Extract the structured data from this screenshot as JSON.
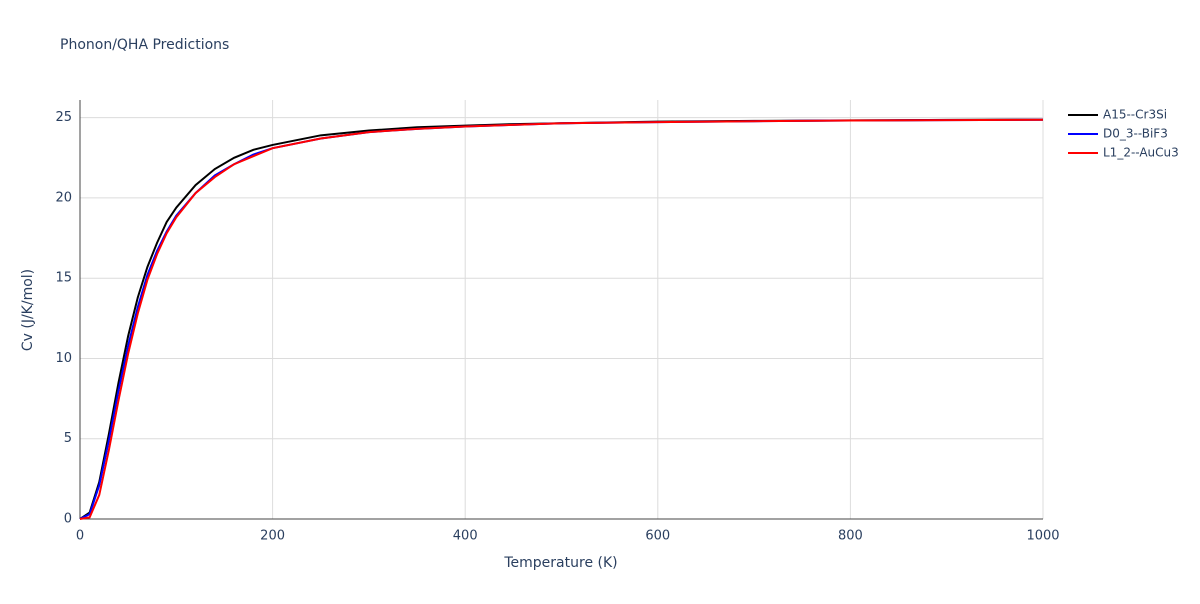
{
  "chart_data": {
    "type": "line",
    "title": "Phonon/QHA Predictions",
    "x_label": "Temperature (K)",
    "y_label": "Cv (J/K/mol)",
    "x": [
      0,
      10,
      20,
      30,
      40,
      50,
      60,
      70,
      80,
      90,
      100,
      120,
      140,
      160,
      180,
      200,
      250,
      300,
      350,
      400,
      450,
      500,
      600,
      700,
      800,
      900,
      1000
    ],
    "series": [
      {
        "name": "A15--Cr3Si",
        "color": "#000000",
        "values": [
          0,
          0.4,
          2.3,
          5.3,
          8.5,
          11.4,
          13.8,
          15.7,
          17.2,
          18.5,
          19.4,
          20.8,
          21.8,
          22.5,
          23.0,
          23.3,
          23.9,
          24.2,
          24.4,
          24.5,
          24.6,
          24.65,
          24.75,
          24.8,
          24.83,
          24.86,
          24.88
        ]
      },
      {
        "name": "D0_3--BiF3",
        "color": "#0000ff",
        "values": [
          0,
          0.3,
          2.1,
          4.9,
          8.0,
          10.8,
          13.2,
          15.2,
          16.7,
          17.9,
          18.9,
          20.3,
          21.4,
          22.1,
          22.7,
          23.1,
          23.7,
          24.1,
          24.3,
          24.45,
          24.55,
          24.65,
          24.72,
          24.78,
          24.82,
          24.85,
          24.87
        ]
      },
      {
        "name": "L1_2--AuCu3",
        "color": "#ff0000",
        "values": [
          0,
          0.1,
          1.5,
          4.3,
          7.4,
          10.3,
          12.8,
          14.9,
          16.5,
          17.8,
          18.8,
          20.3,
          21.3,
          22.1,
          22.6,
          23.1,
          23.7,
          24.1,
          24.3,
          24.45,
          24.55,
          24.65,
          24.72,
          24.78,
          24.82,
          24.85,
          24.87
        ]
      }
    ],
    "xlim": [
      0,
      1000
    ],
    "xticks": [
      0,
      200,
      400,
      600,
      800,
      1000
    ],
    "ylim": [
      0,
      26.1
    ],
    "yticks": [
      0,
      5,
      10,
      15,
      20,
      25
    ],
    "grid": true,
    "legend": "right"
  }
}
